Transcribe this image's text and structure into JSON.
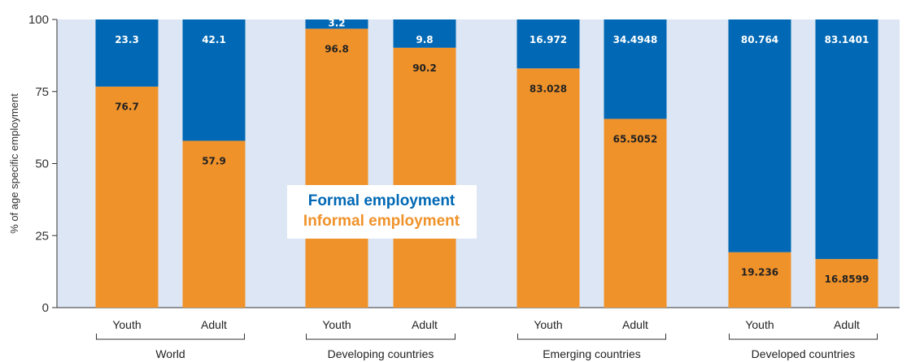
{
  "chart_data": {
    "type": "bar",
    "stacked": true,
    "ylabel": "% of age specific employment",
    "ylim": [
      0,
      100
    ],
    "yticks": [
      0,
      25,
      50,
      75,
      100
    ],
    "grid": false,
    "legend_placement": "center",
    "groups": [
      {
        "label": "World",
        "categories": [
          "Youth",
          "Adult"
        ]
      },
      {
        "label": "Developing countries",
        "categories": [
          "Youth",
          "Adult"
        ]
      },
      {
        "label": "Emerging countries",
        "categories": [
          "Youth",
          "Adult"
        ]
      },
      {
        "label": "Developed countries",
        "categories": [
          "Youth",
          "Adult"
        ]
      }
    ],
    "series": [
      {
        "name": "Informal employment",
        "color": "#f0922a",
        "values": [
          76.7,
          57.9,
          96.8,
          90.2,
          83.028,
          65.5052,
          19.236,
          16.8599
        ],
        "labels": [
          "76.7",
          "57.9",
          "96.8",
          "90.2",
          "83.028",
          "65.5052",
          "19.236",
          "16.8599"
        ]
      },
      {
        "name": "Formal employment",
        "color": "#0068b4",
        "values": [
          23.3,
          42.1,
          3.2,
          9.8,
          16.972,
          34.4948,
          80.764,
          83.1401
        ],
        "labels": [
          "23.3",
          "42.1",
          "3.2",
          "9.8",
          "16.972",
          "34.4948",
          "80.764",
          "83.1401"
        ]
      }
    ],
    "plot_background": "#dce6f4"
  }
}
